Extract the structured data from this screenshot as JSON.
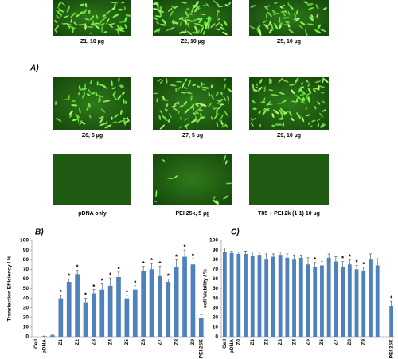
{
  "panel_a": {
    "label": "A)",
    "images": [
      {
        "caption": "Z1, 10 µg"
      },
      {
        "caption": "Z2, 10 µg"
      },
      {
        "caption": "Z5, 10 µg"
      },
      {
        "caption": "Z6, 5 µg"
      },
      {
        "caption": "Z7, 5 µg"
      },
      {
        "caption": "Z9, 10 µg"
      },
      {
        "caption": "pDNA only"
      },
      {
        "caption": "PEI 25k, 5 µg"
      },
      {
        "caption": "T85 + PEI 2k (1:1) 10 µg"
      }
    ]
  },
  "chart_data": [
    {
      "type": "bar",
      "panel_label": "B)",
      "y_label": "Transfection Efficiency / %",
      "color": "#4f81bd",
      "categories": [
        "Cell",
        "pDNA",
        null,
        "Z1",
        null,
        "Z2",
        null,
        "Z3",
        null,
        "Z4",
        null,
        "Z5",
        null,
        "Z6",
        null,
        "Z7",
        null,
        "Z8",
        null,
        "Z9",
        "PEI 25K"
      ],
      "values": [
        0,
        0.5,
        1.5,
        40,
        57,
        65,
        35,
        45,
        49,
        53,
        62,
        40,
        49,
        68,
        70,
        63,
        57,
        72,
        83,
        75,
        19
      ],
      "errors": [
        0,
        0.3,
        0.5,
        3,
        3,
        4,
        5,
        4,
        6,
        8,
        5,
        3,
        4,
        5,
        6,
        10,
        3,
        8,
        7,
        6,
        4
      ],
      "stars": [
        null,
        null,
        null,
        "*",
        "*",
        "*",
        "*",
        "*",
        "*",
        "*",
        "*",
        "*",
        "*",
        "*",
        "*",
        "*",
        "*",
        "*",
        "*",
        "*",
        null
      ],
      "ylim": [
        0,
        100
      ],
      "yticks": [
        0,
        10,
        20,
        30,
        40,
        50,
        60,
        70,
        80,
        90,
        100
      ]
    },
    {
      "type": "bar",
      "panel_label": "C)",
      "y_label": "cell Viability / %",
      "color": "#4f81bd",
      "categories": [
        "Cell",
        "pDNA",
        "Z0",
        null,
        "Z1",
        null,
        "Z2",
        null,
        "Z3",
        null,
        "Z4",
        null,
        "Z5",
        null,
        "Z6",
        null,
        "Z7",
        null,
        "Z8",
        null,
        "Z9",
        null,
        null,
        null,
        "PEI 25K"
      ],
      "values": [
        88,
        87,
        86,
        86,
        84,
        85,
        80,
        83,
        85,
        82,
        80,
        82,
        75,
        72,
        74,
        82,
        78,
        72,
        75,
        70,
        68,
        80,
        74,
        null,
        32
      ],
      "errors": [
        4,
        2,
        2,
        3,
        4,
        3,
        6,
        3,
        3,
        4,
        5,
        3,
        7,
        5,
        4,
        4,
        5,
        6,
        5,
        4,
        4,
        6,
        7,
        null,
        5
      ],
      "stars": [
        null,
        null,
        null,
        null,
        null,
        null,
        null,
        null,
        null,
        null,
        null,
        null,
        null,
        "*",
        null,
        null,
        null,
        "*",
        "*",
        "*",
        "*",
        null,
        null,
        null,
        "*"
      ],
      "ylim": [
        0,
        100
      ],
      "yticks": [
        0,
        10,
        20,
        30,
        40,
        50,
        60,
        70,
        80,
        90,
        100
      ]
    }
  ]
}
